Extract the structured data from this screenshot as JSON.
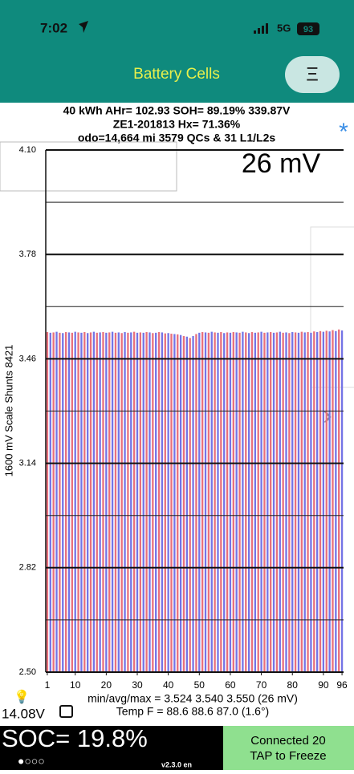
{
  "status_bar": {
    "time": "7:02",
    "network": "5G",
    "battery": "93"
  },
  "header": {
    "title": "Battery Cells",
    "menu": "Ξ"
  },
  "info": {
    "line1": "40 kWh  AHr= 102.93  SOH= 89.19%   339.87V",
    "line2": "ZE1-201813   Hx= 71.36%",
    "line3": "odo=14,664 mi 3579 QCs & 31 L1/L2s",
    "star": "*",
    "spread": "26 mV"
  },
  "chart_data": {
    "type": "bar",
    "ylabel": "1600 mV Scale   Shunts 8421",
    "x": [
      1,
      2,
      3,
      4,
      5,
      6,
      7,
      8,
      9,
      10,
      11,
      12,
      13,
      14,
      15,
      16,
      17,
      18,
      19,
      20,
      21,
      22,
      23,
      24,
      25,
      26,
      27,
      28,
      29,
      30,
      31,
      32,
      33,
      34,
      35,
      36,
      37,
      38,
      39,
      40,
      41,
      42,
      43,
      44,
      45,
      46,
      47,
      48,
      49,
      50,
      51,
      52,
      53,
      54,
      55,
      56,
      57,
      58,
      59,
      60,
      61,
      62,
      63,
      64,
      65,
      66,
      67,
      68,
      69,
      70,
      71,
      72,
      73,
      74,
      75,
      76,
      77,
      78,
      79,
      80,
      81,
      82,
      83,
      84,
      85,
      86,
      87,
      88,
      89,
      90,
      91,
      92,
      93,
      94,
      95,
      96
    ],
    "values": [
      3.542,
      3.54,
      3.541,
      3.543,
      3.54,
      3.539,
      3.542,
      3.541,
      3.54,
      3.543,
      3.541,
      3.54,
      3.542,
      3.539,
      3.541,
      3.543,
      3.54,
      3.541,
      3.542,
      3.54,
      3.541,
      3.543,
      3.54,
      3.541,
      3.539,
      3.542,
      3.54,
      3.541,
      3.543,
      3.54,
      3.541,
      3.54,
      3.542,
      3.541,
      3.539,
      3.54,
      3.542,
      3.541,
      3.538,
      3.539,
      3.537,
      3.536,
      3.535,
      3.533,
      3.53,
      3.528,
      3.524,
      3.53,
      3.536,
      3.54,
      3.542,
      3.541,
      3.54,
      3.543,
      3.541,
      3.54,
      3.542,
      3.539,
      3.541,
      3.54,
      3.542,
      3.541,
      3.54,
      3.543,
      3.541,
      3.539,
      3.542,
      3.54,
      3.541,
      3.543,
      3.54,
      3.541,
      3.542,
      3.54,
      3.541,
      3.543,
      3.54,
      3.541,
      3.539,
      3.542,
      3.541,
      3.54,
      3.543,
      3.541,
      3.542,
      3.54,
      3.544,
      3.542,
      3.545,
      3.543,
      3.546,
      3.544,
      3.548,
      3.545,
      3.55,
      3.547
    ],
    "colors": [
      "#e8707c",
      "#7474e6"
    ],
    "xlim": [
      0.5,
      96.5
    ],
    "xticks": [
      1,
      10,
      20,
      30,
      40,
      50,
      60,
      70,
      80,
      90,
      96
    ],
    "ylim": [
      2.5,
      4.1
    ],
    "yticks": [
      {
        "value": 2.5,
        "label": "2.50"
      },
      {
        "value": 2.82,
        "label": "2.82"
      },
      {
        "value": 3.14,
        "label": "3.14"
      },
      {
        "value": 3.46,
        "label": "3.46"
      },
      {
        "value": 3.78,
        "label": "3.78"
      },
      {
        "value": 4.1,
        "label": "4.10"
      }
    ],
    "yminor": [
      2.66,
      2.98,
      3.3,
      3.62,
      3.94
    ],
    "grid": true
  },
  "stats": {
    "minavgmax": "min/avg/max = 3.524 3.540 3.550  (26 mV)",
    "temp": "Temp F = 88.6  88.6  87.0  (1.6°)",
    "aux": "14.08V"
  },
  "footer": {
    "soc": "SOC= 19.8%",
    "dots": "●○○○",
    "version": "v2.3.0 en",
    "connected": "Connected 20",
    "freeze": "TAP to Freeze"
  }
}
